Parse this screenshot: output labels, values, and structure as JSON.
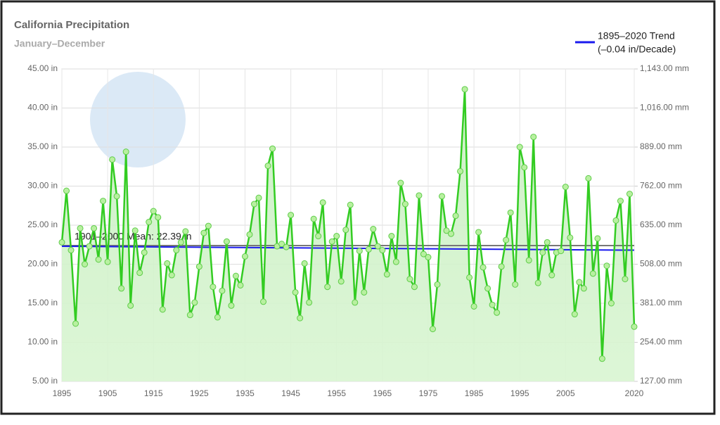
{
  "chart_data": {
    "type": "line",
    "title": "California Precipitation",
    "subtitle": "January–December",
    "x": [
      1895,
      1896,
      1897,
      1898,
      1899,
      1900,
      1901,
      1902,
      1903,
      1904,
      1905,
      1906,
      1907,
      1908,
      1909,
      1910,
      1911,
      1912,
      1913,
      1914,
      1915,
      1916,
      1917,
      1918,
      1919,
      1920,
      1921,
      1922,
      1923,
      1924,
      1925,
      1926,
      1927,
      1928,
      1929,
      1930,
      1931,
      1932,
      1933,
      1934,
      1935,
      1936,
      1937,
      1938,
      1939,
      1940,
      1941,
      1942,
      1943,
      1944,
      1945,
      1946,
      1947,
      1948,
      1949,
      1950,
      1951,
      1952,
      1953,
      1954,
      1955,
      1956,
      1957,
      1958,
      1959,
      1960,
      1961,
      1962,
      1963,
      1964,
      1965,
      1966,
      1967,
      1968,
      1969,
      1970,
      1971,
      1972,
      1973,
      1974,
      1975,
      1976,
      1977,
      1978,
      1979,
      1980,
      1981,
      1982,
      1983,
      1984,
      1985,
      1986,
      1987,
      1988,
      1989,
      1990,
      1991,
      1992,
      1993,
      1994,
      1995,
      1996,
      1997,
      1998,
      1999,
      2000,
      2001,
      2002,
      2003,
      2004,
      2005,
      2006,
      2007,
      2008,
      2009,
      2010,
      2011,
      2012,
      2013,
      2014,
      2015,
      2016,
      2017,
      2018,
      2019,
      2020
    ],
    "series": [
      {
        "name": "California Precipitation",
        "color": "#33cc22",
        "values": [
          22.8,
          29.4,
          21.8,
          12.4,
          24.6,
          20.0,
          22.3,
          24.6,
          20.6,
          28.1,
          20.3,
          33.4,
          28.7,
          16.9,
          34.4,
          14.7,
          24.3,
          18.9,
          21.5,
          25.4,
          26.8,
          26.0,
          14.2,
          20.1,
          18.6,
          21.8,
          22.8,
          24.2,
          13.5,
          15.1,
          19.7,
          24.0,
          24.9,
          17.1,
          13.2,
          16.6,
          22.9,
          14.7,
          18.5,
          17.3,
          21.0,
          23.8,
          27.7,
          28.5,
          15.2,
          32.6,
          34.8,
          22.3,
          22.6,
          22.2,
          26.3,
          16.4,
          13.1,
          20.1,
          15.1,
          25.8,
          23.6,
          27.9,
          17.1,
          22.9,
          23.6,
          17.8,
          24.4,
          27.6,
          15.1,
          21.7,
          16.4,
          21.9,
          24.5,
          22.3,
          21.8,
          18.7,
          23.6,
          20.3,
          30.4,
          27.7,
          18.1,
          17.1,
          28.8,
          21.3,
          20.9,
          11.7,
          17.4,
          28.7,
          24.3,
          23.9,
          26.2,
          31.9,
          42.4,
          18.3,
          14.6,
          24.1,
          19.6,
          16.9,
          14.8,
          13.8,
          19.7,
          23.1,
          26.6,
          17.4,
          35.0,
          32.4,
          20.5,
          36.3,
          17.6,
          21.5,
          22.8,
          18.6,
          21.5,
          21.7,
          29.9,
          23.4,
          13.6,
          17.7,
          16.9,
          31.0,
          18.8,
          23.3,
          7.9,
          19.8,
          15.0,
          25.6,
          28.1,
          18.1,
          29.0,
          12.0
        ]
      }
    ],
    "trend": {
      "name": "1895–2020 Trend",
      "note": "(–0.04 in/Decade)",
      "color": "#1a1aee",
      "x": [
        1895,
        2020
      ],
      "values": [
        22.3,
        21.8
      ]
    },
    "mean": {
      "label": "1901–2000 Mean: 22.39 in",
      "value": 22.39,
      "color": "#777777"
    },
    "xlim": [
      1895,
      2020
    ],
    "xticks": [
      1895,
      1905,
      1915,
      1925,
      1935,
      1945,
      1955,
      1965,
      1975,
      1985,
      1995,
      2005,
      2020
    ],
    "ylim": [
      5,
      45
    ],
    "yticks": [
      {
        "value": 5,
        "label": "5.00 in"
      },
      {
        "value": 10,
        "label": "10.00 in"
      },
      {
        "value": 15,
        "label": "15.00 in"
      },
      {
        "value": 20,
        "label": "20.00 in"
      },
      {
        "value": 25,
        "label": "25.00 in"
      },
      {
        "value": 30,
        "label": "30.00 in"
      },
      {
        "value": 35,
        "label": "35.00 in"
      },
      {
        "value": 40,
        "label": "40.00 in"
      },
      {
        "value": 45,
        "label": "45.00 in"
      }
    ],
    "y2lim": [
      127,
      1143
    ],
    "y2ticks": [
      {
        "value": 127,
        "label": "127.00 mm"
      },
      {
        "value": 254,
        "label": "254.00 mm"
      },
      {
        "value": 381,
        "label": "381.00 mm"
      },
      {
        "value": 508,
        "label": "508.00 mm"
      },
      {
        "value": 635,
        "label": "635.00 mm"
      },
      {
        "value": 762,
        "label": "762.00 mm"
      },
      {
        "value": 889,
        "label": "889.00 mm"
      },
      {
        "value": 1016,
        "label": "1,016.00 mm"
      },
      {
        "value": 1143,
        "label": "1,143.00 mm"
      }
    ],
    "grid": true
  }
}
